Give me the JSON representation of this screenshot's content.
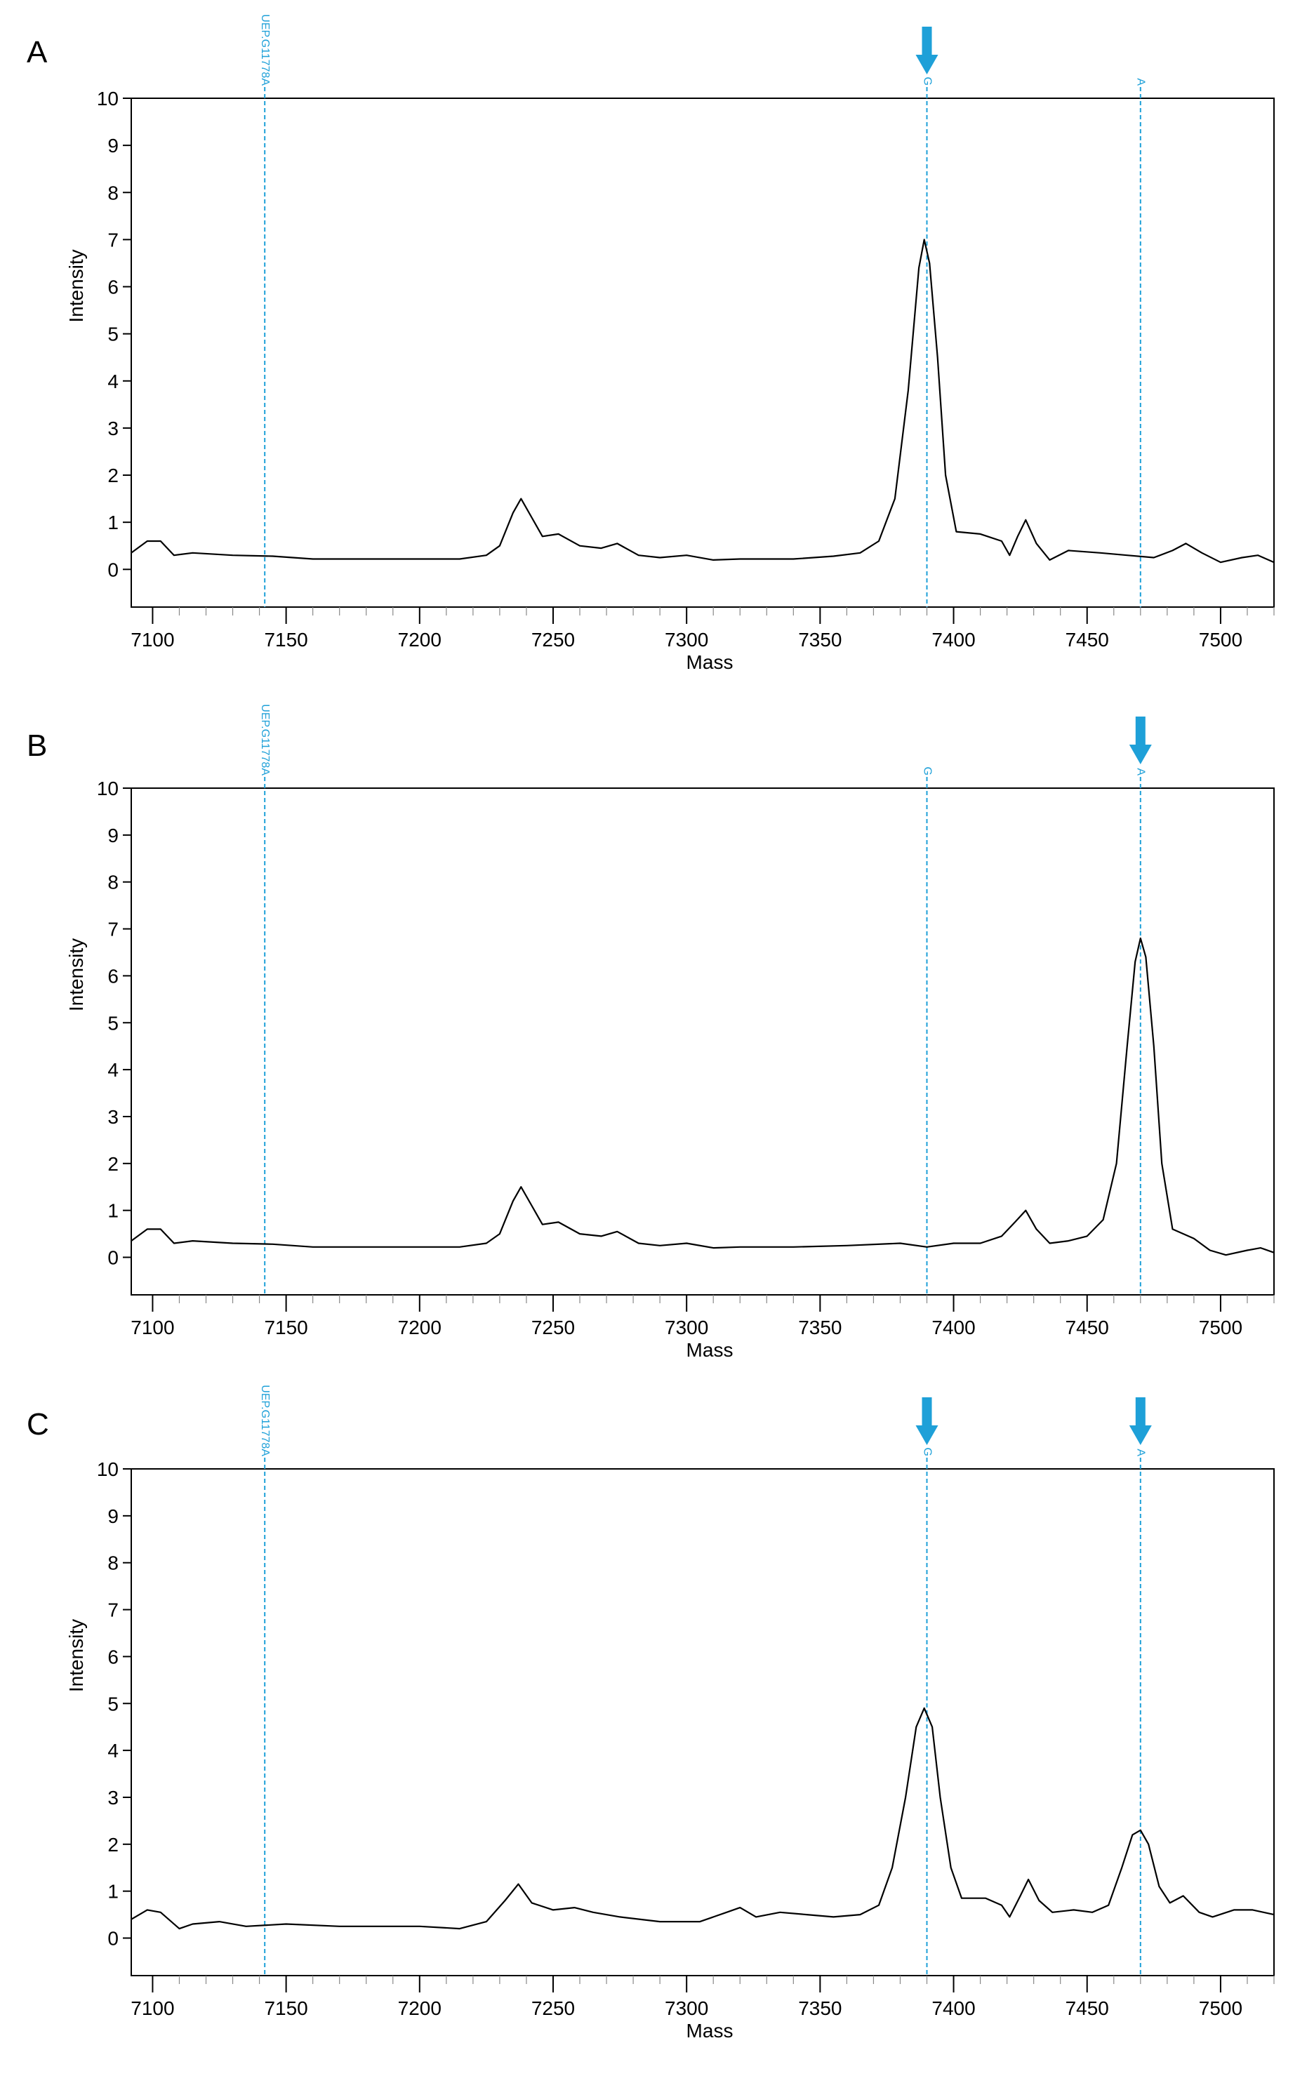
{
  "chart_data": [
    {
      "panel_label": "A",
      "type": "line",
      "xlabel": "Mass",
      "ylabel": "Intensity",
      "xlim": [
        7092,
        7520
      ],
      "ylim": [
        -0.8,
        10
      ],
      "x_ticks": [
        7100,
        7150,
        7200,
        7250,
        7300,
        7350,
        7400,
        7450,
        7500
      ],
      "y_ticks": [
        0,
        1,
        2,
        3,
        4,
        5,
        6,
        7,
        8,
        9,
        10
      ],
      "markers": [
        {
          "label": "UEP.G11778A",
          "x": 7142,
          "arrow": false
        },
        {
          "label": "G",
          "x": 7390,
          "arrow": true
        },
        {
          "label": "A",
          "x": 7470,
          "arrow": false
        }
      ],
      "series": [
        {
          "name": "spectrum",
          "color": "#000000",
          "points": [
            [
              7092,
              0.35
            ],
            [
              7098,
              0.6
            ],
            [
              7103,
              0.6
            ],
            [
              7108,
              0.3
            ],
            [
              7115,
              0.35
            ],
            [
              7130,
              0.3
            ],
            [
              7145,
              0.28
            ],
            [
              7160,
              0.22
            ],
            [
              7180,
              0.22
            ],
            [
              7200,
              0.22
            ],
            [
              7215,
              0.22
            ],
            [
              7225,
              0.3
            ],
            [
              7230,
              0.5
            ],
            [
              7235,
              1.2
            ],
            [
              7238,
              1.5
            ],
            [
              7242,
              1.1
            ],
            [
              7246,
              0.7
            ],
            [
              7252,
              0.75
            ],
            [
              7260,
              0.5
            ],
            [
              7268,
              0.45
            ],
            [
              7274,
              0.55
            ],
            [
              7282,
              0.3
            ],
            [
              7290,
              0.25
            ],
            [
              7300,
              0.3
            ],
            [
              7310,
              0.2
            ],
            [
              7320,
              0.22
            ],
            [
              7340,
              0.22
            ],
            [
              7355,
              0.28
            ],
            [
              7365,
              0.35
            ],
            [
              7372,
              0.6
            ],
            [
              7378,
              1.5
            ],
            [
              7383,
              3.8
            ],
            [
              7387,
              6.4
            ],
            [
              7389,
              7.0
            ],
            [
              7391,
              6.5
            ],
            [
              7394,
              4.5
            ],
            [
              7397,
              2.0
            ],
            [
              7401,
              0.8
            ],
            [
              7410,
              0.75
            ],
            [
              7418,
              0.6
            ],
            [
              7421,
              0.3
            ],
            [
              7424,
              0.7
            ],
            [
              7427,
              1.05
            ],
            [
              7431,
              0.55
            ],
            [
              7436,
              0.2
            ],
            [
              7443,
              0.4
            ],
            [
              7455,
              0.35
            ],
            [
              7465,
              0.3
            ],
            [
              7475,
              0.25
            ],
            [
              7482,
              0.4
            ],
            [
              7487,
              0.55
            ],
            [
              7493,
              0.35
            ],
            [
              7500,
              0.15
            ],
            [
              7508,
              0.25
            ],
            [
              7514,
              0.3
            ],
            [
              7520,
              0.15
            ]
          ]
        }
      ]
    },
    {
      "panel_label": "B",
      "type": "line",
      "xlabel": "Mass",
      "ylabel": "Intensity",
      "xlim": [
        7092,
        7520
      ],
      "ylim": [
        -0.8,
        10
      ],
      "x_ticks": [
        7100,
        7150,
        7200,
        7250,
        7300,
        7350,
        7400,
        7450,
        7500
      ],
      "y_ticks": [
        0,
        1,
        2,
        3,
        4,
        5,
        6,
        7,
        8,
        9,
        10
      ],
      "markers": [
        {
          "label": "UEP.G11778A",
          "x": 7142,
          "arrow": false
        },
        {
          "label": "G",
          "x": 7390,
          "arrow": false
        },
        {
          "label": "A",
          "x": 7470,
          "arrow": true
        }
      ],
      "series": [
        {
          "name": "spectrum",
          "color": "#000000",
          "points": [
            [
              7092,
              0.35
            ],
            [
              7098,
              0.6
            ],
            [
              7103,
              0.6
            ],
            [
              7108,
              0.3
            ],
            [
              7115,
              0.35
            ],
            [
              7130,
              0.3
            ],
            [
              7145,
              0.28
            ],
            [
              7160,
              0.22
            ],
            [
              7180,
              0.22
            ],
            [
              7200,
              0.22
            ],
            [
              7215,
              0.22
            ],
            [
              7225,
              0.3
            ],
            [
              7230,
              0.5
            ],
            [
              7235,
              1.2
            ],
            [
              7238,
              1.5
            ],
            [
              7242,
              1.1
            ],
            [
              7246,
              0.7
            ],
            [
              7252,
              0.75
            ],
            [
              7260,
              0.5
            ],
            [
              7268,
              0.45
            ],
            [
              7274,
              0.55
            ],
            [
              7282,
              0.3
            ],
            [
              7290,
              0.25
            ],
            [
              7300,
              0.3
            ],
            [
              7310,
              0.2
            ],
            [
              7320,
              0.22
            ],
            [
              7340,
              0.22
            ],
            [
              7360,
              0.25
            ],
            [
              7380,
              0.3
            ],
            [
              7390,
              0.22
            ],
            [
              7400,
              0.3
            ],
            [
              7410,
              0.3
            ],
            [
              7418,
              0.45
            ],
            [
              7423,
              0.75
            ],
            [
              7427,
              1.0
            ],
            [
              7431,
              0.6
            ],
            [
              7436,
              0.3
            ],
            [
              7443,
              0.35
            ],
            [
              7450,
              0.45
            ],
            [
              7456,
              0.8
            ],
            [
              7461,
              2.0
            ],
            [
              7465,
              4.5
            ],
            [
              7468,
              6.3
            ],
            [
              7470,
              6.8
            ],
            [
              7472,
              6.4
            ],
            [
              7475,
              4.5
            ],
            [
              7478,
              2.0
            ],
            [
              7482,
              0.6
            ],
            [
              7490,
              0.4
            ],
            [
              7496,
              0.15
            ],
            [
              7502,
              0.05
            ],
            [
              7510,
              0.15
            ],
            [
              7515,
              0.2
            ],
            [
              7520,
              0.1
            ]
          ]
        }
      ]
    },
    {
      "panel_label": "C",
      "type": "line",
      "xlabel": "Mass",
      "ylabel": "Intensity",
      "xlim": [
        7092,
        7520
      ],
      "ylim": [
        -0.8,
        10
      ],
      "x_ticks": [
        7100,
        7150,
        7200,
        7250,
        7300,
        7350,
        7400,
        7450,
        7500
      ],
      "y_ticks": [
        0,
        1,
        2,
        3,
        4,
        5,
        6,
        7,
        8,
        9,
        10
      ],
      "markers": [
        {
          "label": "UEP.G11778A",
          "x": 7142,
          "arrow": false
        },
        {
          "label": "G",
          "x": 7390,
          "arrow": true
        },
        {
          "label": "A",
          "x": 7470,
          "arrow": true
        }
      ],
      "series": [
        {
          "name": "spectrum",
          "color": "#000000",
          "points": [
            [
              7092,
              0.4
            ],
            [
              7098,
              0.6
            ],
            [
              7103,
              0.55
            ],
            [
              7110,
              0.2
            ],
            [
              7115,
              0.3
            ],
            [
              7125,
              0.35
            ],
            [
              7135,
              0.25
            ],
            [
              7150,
              0.3
            ],
            [
              7170,
              0.25
            ],
            [
              7200,
              0.25
            ],
            [
              7215,
              0.2
            ],
            [
              7225,
              0.35
            ],
            [
              7232,
              0.8
            ],
            [
              7237,
              1.15
            ],
            [
              7242,
              0.75
            ],
            [
              7250,
              0.6
            ],
            [
              7258,
              0.65
            ],
            [
              7265,
              0.55
            ],
            [
              7275,
              0.45
            ],
            [
              7290,
              0.35
            ],
            [
              7305,
              0.35
            ],
            [
              7315,
              0.55
            ],
            [
              7320,
              0.65
            ],
            [
              7326,
              0.45
            ],
            [
              7335,
              0.55
            ],
            [
              7345,
              0.5
            ],
            [
              7355,
              0.45
            ],
            [
              7365,
              0.5
            ],
            [
              7372,
              0.7
            ],
            [
              7377,
              1.5
            ],
            [
              7382,
              3.0
            ],
            [
              7386,
              4.5
            ],
            [
              7389,
              4.9
            ],
            [
              7392,
              4.5
            ],
            [
              7395,
              3.0
            ],
            [
              7399,
              1.5
            ],
            [
              7403,
              0.85
            ],
            [
              7412,
              0.85
            ],
            [
              7418,
              0.7
            ],
            [
              7421,
              0.45
            ],
            [
              7425,
              0.9
            ],
            [
              7428,
              1.25
            ],
            [
              7432,
              0.8
            ],
            [
              7437,
              0.55
            ],
            [
              7445,
              0.6
            ],
            [
              7452,
              0.55
            ],
            [
              7458,
              0.7
            ],
            [
              7463,
              1.5
            ],
            [
              7467,
              2.2
            ],
            [
              7470,
              2.3
            ],
            [
              7473,
              2.0
            ],
            [
              7477,
              1.1
            ],
            [
              7481,
              0.75
            ],
            [
              7486,
              0.9
            ],
            [
              7492,
              0.55
            ],
            [
              7497,
              0.45
            ],
            [
              7505,
              0.6
            ],
            [
              7512,
              0.6
            ],
            [
              7520,
              0.5
            ]
          ]
        }
      ]
    }
  ]
}
